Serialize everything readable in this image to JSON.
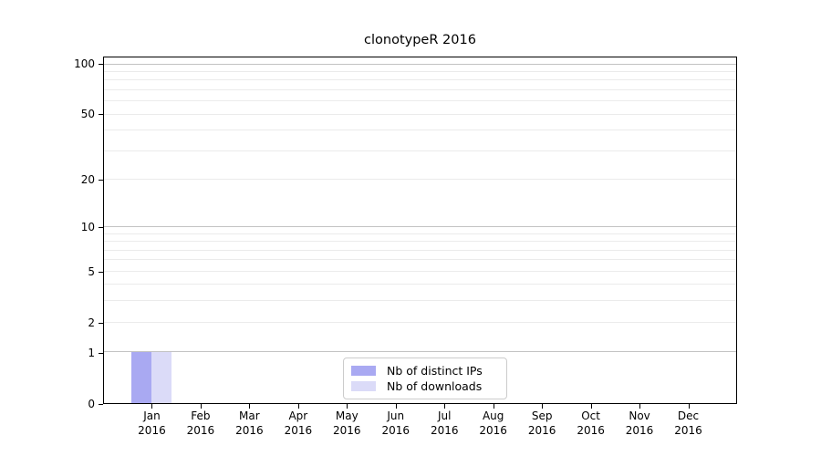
{
  "figure": {
    "background": "#ffffff"
  },
  "chart_data": {
    "type": "bar",
    "title": "clonotypeR 2016",
    "categories": [
      "Jan",
      "Feb",
      "Mar",
      "Apr",
      "May",
      "Jun",
      "Jul",
      "Aug",
      "Sep",
      "Oct",
      "Nov",
      "Dec"
    ],
    "category_year": "2016",
    "series": [
      {
        "name": "Nb of distinct IPs",
        "color": "#a9a9f2",
        "values": [
          1,
          0,
          0,
          0,
          0,
          0,
          0,
          0,
          0,
          0,
          0,
          0
        ]
      },
      {
        "name": "Nb of downloads",
        "color": "#dbdbf8",
        "values": [
          1,
          0,
          0,
          0,
          0,
          0,
          0,
          0,
          0,
          0,
          0,
          0
        ]
      }
    ],
    "xlabel": "",
    "ylabel": "",
    "yscale": "log1p",
    "ylim": [
      0,
      110
    ],
    "y_ticks": [
      0,
      1,
      2,
      5,
      10,
      20,
      50,
      100
    ],
    "grid_major_values": [
      1,
      10,
      100
    ],
    "grid_minor_values": [
      2,
      3,
      4,
      5,
      6,
      7,
      8,
      9,
      20,
      30,
      40,
      50,
      60,
      70,
      80,
      90
    ],
    "grid": "on",
    "legend_position": "lower center"
  },
  "style": {
    "grid_major_color": "#c3c3c3",
    "grid_minor_color": "#ebebeb",
    "spine_color": "#000000",
    "text_color": "#000000",
    "legend_border_color": "#cccccc"
  }
}
